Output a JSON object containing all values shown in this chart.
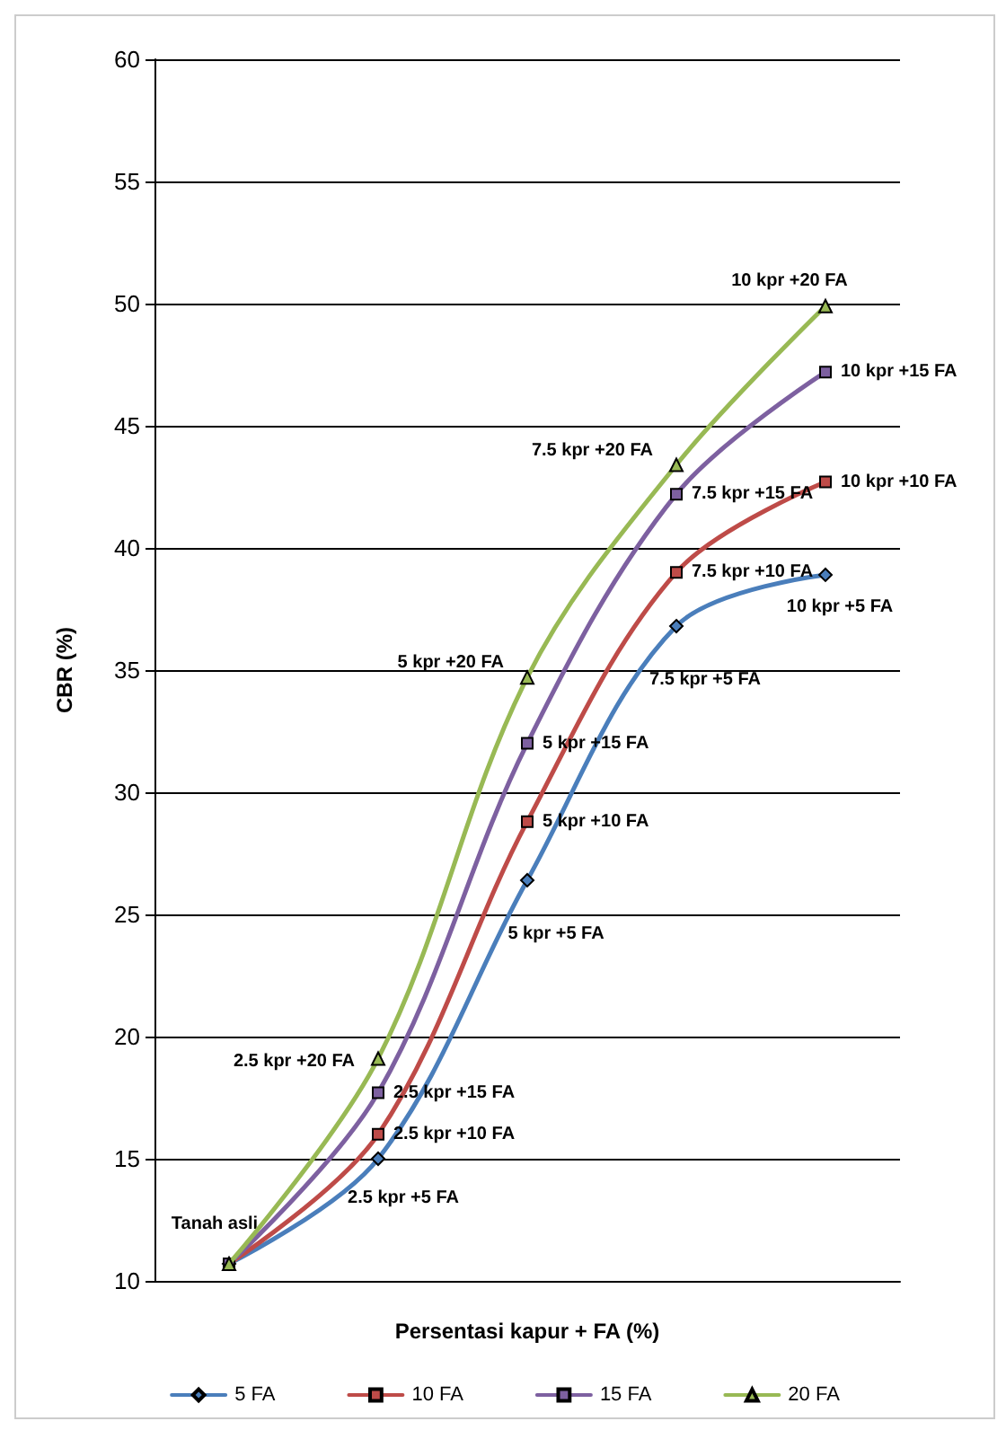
{
  "chart_data": {
    "type": "line",
    "xlabel": "Persentasi kapur + FA (%)",
    "ylabel": "CBR (%)",
    "categories": [
      null,
      null,
      null,
      null,
      null
    ],
    "ylim": [
      10,
      60
    ],
    "yticks": [
      10,
      15,
      20,
      25,
      30,
      35,
      40,
      45,
      50,
      55,
      60
    ],
    "grid": "y",
    "legend": "bottom",
    "series": [
      {
        "name": "5 FA",
        "color": "#4a7ebb",
        "marker": "diamond",
        "values": [
          10.7,
          15.0,
          26.4,
          36.8,
          38.9
        ]
      },
      {
        "name": "10 FA",
        "color": "#be4b48",
        "marker": "square",
        "values": [
          10.7,
          16.0,
          28.8,
          39.0,
          42.7
        ]
      },
      {
        "name": "15 FA",
        "color": "#7d60a0",
        "marker": "square",
        "values": [
          10.7,
          17.7,
          32.0,
          42.2,
          47.2
        ]
      },
      {
        "name": "20 FA",
        "color": "#98b954",
        "marker": "triangle",
        "values": [
          10.7,
          19.1,
          34.7,
          43.4,
          49.9
        ]
      }
    ],
    "annotations": [
      "Tanah asli",
      "2.5 kpr +5 FA",
      "5 kpr +5 FA",
      "7.5 kpr +5 FA",
      "10 kpr +5 FA",
      "2.5 kpr +10 FA",
      "5 kpr +10 FA",
      "7.5 kpr +10 FA",
      "10 kpr +10 FA",
      "2.5 kpr +15 FA",
      "5 kpr +15 FA",
      "7.5 kpr +15 FA",
      "10 kpr +15 FA",
      "2.5 kpr +20 FA",
      "5 kpr +20 FA",
      "7.5 kpr +20 FA",
      "10 kpr +20 FA"
    ]
  }
}
